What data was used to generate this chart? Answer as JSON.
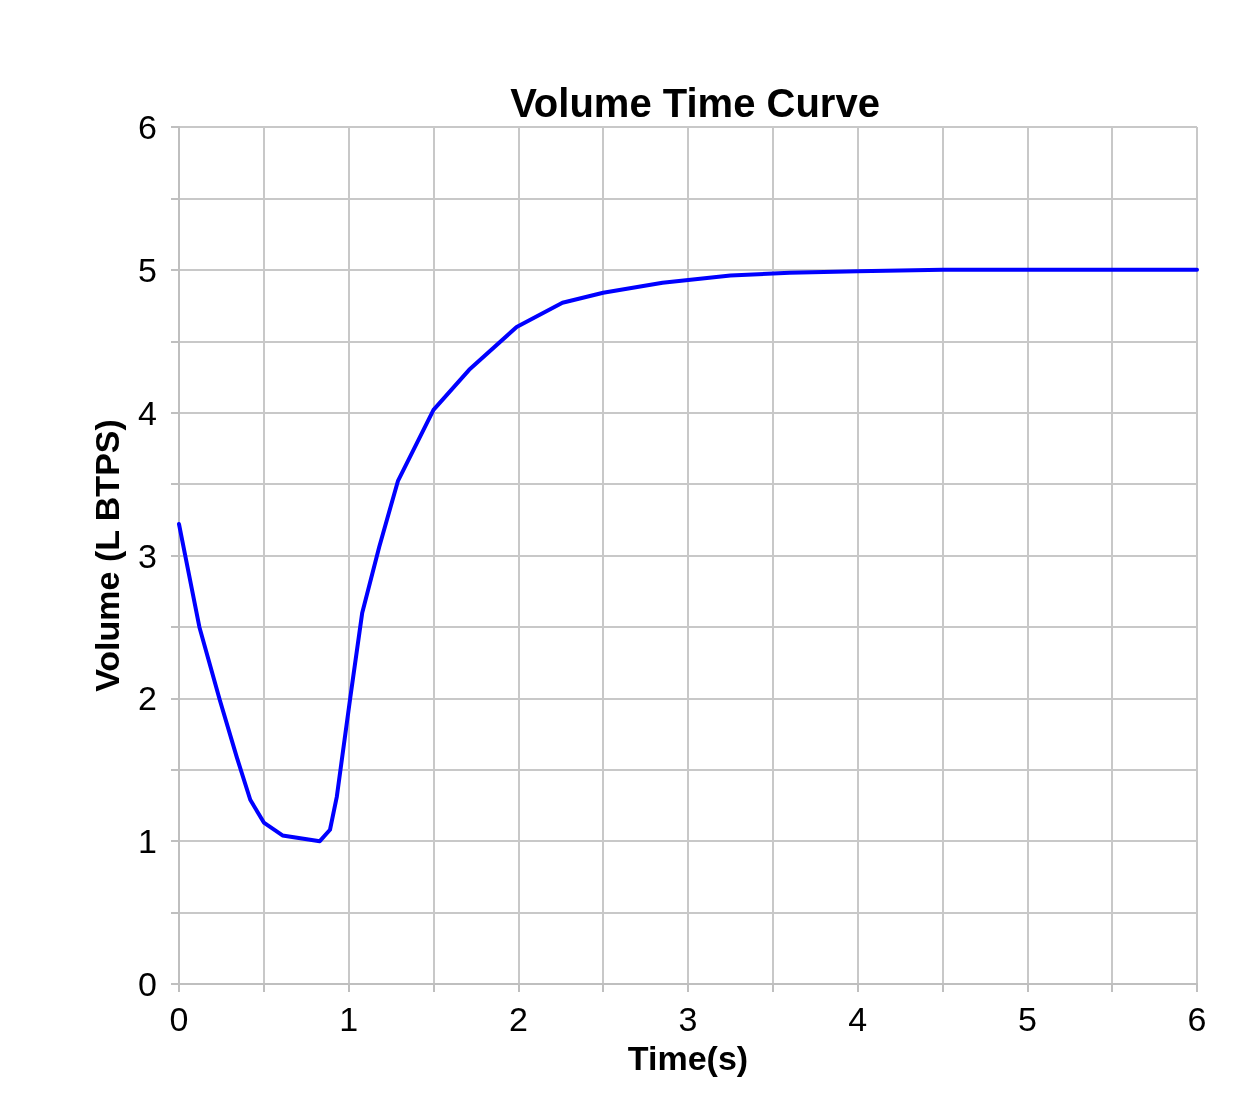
{
  "chart_data": {
    "type": "line",
    "title": "Volume Time Curve",
    "xlabel": "Time(s)",
    "ylabel": "Volume (L BTPS)",
    "xlim": [
      0,
      6
    ],
    "ylim": [
      0,
      6
    ],
    "xticks": [
      0,
      {
        "value": 0.5,
        "label": null
      },
      1,
      {
        "value": 1.5,
        "label": null
      },
      2,
      {
        "value": 2.5,
        "label": null
      },
      3,
      {
        "value": 3.5,
        "label": null
      },
      4,
      {
        "value": 4.5,
        "label": null
      },
      5,
      {
        "value": 5.5,
        "label": null
      },
      6
    ],
    "yticks": [
      0,
      {
        "value": 0.5,
        "label": null
      },
      1,
      {
        "value": 1.5,
        "label": null
      },
      2,
      {
        "value": 2.5,
        "label": null
      },
      3,
      {
        "value": 3.5,
        "label": null
      },
      4,
      {
        "value": 4.5,
        "label": null
      },
      5,
      {
        "value": 5.5,
        "label": null
      },
      6
    ],
    "grid": true,
    "marker": "none",
    "line_style": "solid",
    "series": [
      {
        "color": "#0000ff",
        "x": [
          0,
          0.12,
          0.24,
          0.34,
          0.42,
          0.5,
          0.61,
          0.83,
          0.89,
          0.93,
          1.01,
          1.08,
          1.18,
          1.29,
          1.5,
          1.71,
          1.99,
          2.26,
          2.5,
          2.85,
          3.25,
          3.6,
          4,
          4.5,
          5,
          5.5,
          6
        ],
        "values": [
          3.22,
          2.5,
          1.99,
          1.59,
          1.29,
          1.13,
          1.04,
          1.0,
          1.08,
          1.31,
          2.01,
          2.6,
          3.06,
          3.52,
          4.02,
          4.3,
          4.6,
          4.77,
          4.84,
          4.91,
          4.96,
          4.98,
          4.99,
          5.0,
          5.0,
          5.0,
          5.0
        ]
      }
    ]
  }
}
